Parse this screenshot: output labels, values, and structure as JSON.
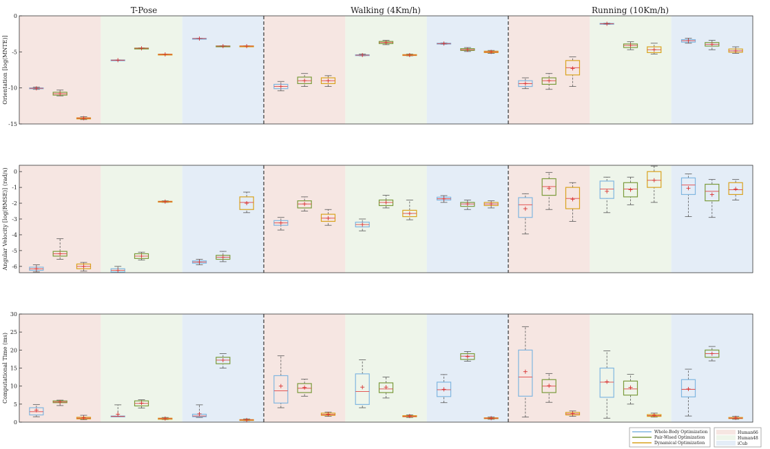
{
  "chart_data": {
    "type": "box",
    "scenarios": [
      "T-Pose",
      "Walking (4Km/h)",
      "Running (10Km/h)"
    ],
    "models": [
      "Human66",
      "Human48",
      "iCub"
    ],
    "methods": [
      "Whole-Body Optimization",
      "Pair-Wised Optimization",
      "Dynamical Optimization"
    ],
    "colors": {
      "methods": [
        "#7fb6e0",
        "#7a9a3a",
        "#d9a21c"
      ],
      "models": [
        "#f6e6e2",
        "#eef5ea",
        "#e4edf7"
      ],
      "median": "#e04040",
      "mean": "#d8302f",
      "whisker": "#555555",
      "divider": "#333333"
    },
    "legend": {
      "methods": [
        "Whole-Body Optimization",
        "Pair-Wised Optimization",
        "Dynamical Optimization"
      ],
      "models": [
        "Human66",
        "Human48",
        "iCub"
      ]
    },
    "panels": [
      {
        "id": "orientation",
        "ylabel": "Orientation [log(MNTE)]",
        "ylim": [
          -15,
          0
        ],
        "yticks": [
          0,
          -5,
          -10,
          -15
        ],
        "yticklabels": [
          "0",
          "-5",
          "-10",
          "-15"
        ],
        "boxes": [
          [
            [
              -10.2,
              -10.1,
              -10.05,
              -10.0,
              -9.9,
              -10.05
            ],
            [
              -11.1,
              -11.0,
              -10.8,
              -10.6,
              -10.3,
              -10.8
            ],
            [
              -14.4,
              -14.3,
              -14.2,
              -14.15,
              -14.0,
              -14.2
            ],
            [
              -6.2,
              -6.18,
              -6.15,
              -6.12,
              -6.1,
              -6.15
            ],
            [
              -4.55,
              -4.52,
              -4.5,
              -4.48,
              -4.45,
              -4.5
            ],
            [
              -5.4,
              -5.38,
              -5.35,
              -5.32,
              -5.3,
              -5.35
            ],
            [
              -3.2,
              -3.17,
              -3.15,
              -3.13,
              -3.1,
              -3.15
            ],
            [
              -4.25,
              -4.22,
              -4.2,
              -4.18,
              -4.15,
              -4.2
            ],
            [
              -4.25,
              -4.22,
              -4.2,
              -4.18,
              -4.15,
              -4.2
            ]
          ],
          [
            [
              -10.4,
              -10.1,
              -9.8,
              -9.5,
              -9.1,
              -9.8
            ],
            [
              -9.8,
              -9.4,
              -9.0,
              -8.5,
              -8.0,
              -9.0
            ],
            [
              -9.8,
              -9.4,
              -9.0,
              -8.6,
              -8.3,
              -9.0
            ],
            [
              -5.55,
              -5.5,
              -5.45,
              -5.4,
              -5.3,
              -5.45
            ],
            [
              -4.0,
              -3.85,
              -3.7,
              -3.55,
              -3.4,
              -3.7
            ],
            [
              -5.55,
              -5.5,
              -5.45,
              -5.38,
              -5.3,
              -5.45
            ],
            [
              -3.95,
              -3.9,
              -3.85,
              -3.8,
              -3.75,
              -3.85
            ],
            [
              -4.95,
              -4.8,
              -4.7,
              -4.55,
              -4.4,
              -4.7
            ],
            [
              -5.2,
              -5.1,
              -5.0,
              -4.9,
              -4.8,
              -5.0
            ]
          ],
          [
            [
              -10.1,
              -9.8,
              -9.4,
              -9.0,
              -8.6,
              -9.4
            ],
            [
              -10.2,
              -9.5,
              -9.0,
              -8.6,
              -8.0,
              -9.0
            ],
            [
              -9.8,
              -8.2,
              -7.2,
              -6.2,
              -5.7,
              -7.3
            ],
            [
              -1.2,
              -1.15,
              -1.1,
              -1.05,
              -1.0,
              -1.1
            ],
            [
              -4.7,
              -4.4,
              -4.1,
              -3.9,
              -3.6,
              -4.1
            ],
            [
              -5.3,
              -5.1,
              -4.7,
              -4.3,
              -3.8,
              -4.7
            ],
            [
              -3.8,
              -3.65,
              -3.45,
              -3.3,
              -3.1,
              -3.45
            ],
            [
              -4.7,
              -4.2,
              -3.95,
              -3.7,
              -3.4,
              -3.95
            ],
            [
              -5.2,
              -5.05,
              -4.85,
              -4.6,
              -4.3,
              -4.85
            ]
          ]
        ]
      },
      {
        "id": "angular-velocity",
        "ylabel": "Angular Velocity [log(RMSE)] (rad/s)",
        "ylim": [
          -6.4,
          0.4
        ],
        "yticks": [
          0,
          -1,
          -2,
          -3,
          -4,
          -5,
          -6
        ],
        "yticklabels": [
          "0",
          "-1",
          "-2",
          "-3",
          "-4",
          "-5",
          "-6"
        ],
        "boxes": [
          [
            [
              -6.35,
              -6.25,
              -6.15,
              -6.05,
              -5.9,
              -6.15
            ],
            [
              -5.55,
              -5.35,
              -5.2,
              -5.05,
              -4.25,
              -5.2
            ],
            [
              -6.3,
              -6.15,
              -6.0,
              -5.85,
              -5.75,
              -6.0
            ],
            [
              -6.4,
              -6.35,
              -6.25,
              -6.15,
              -6.0,
              -6.25
            ],
            [
              -5.6,
              -5.5,
              -5.35,
              -5.2,
              -5.1,
              -5.35
            ],
            [
              -1.95,
              -1.92,
              -1.9,
              -1.88,
              -1.85,
              -1.9
            ],
            [
              -5.9,
              -5.8,
              -5.72,
              -5.65,
              -5.55,
              -5.72
            ],
            [
              -5.7,
              -5.55,
              -5.42,
              -5.3,
              -5.05,
              -5.42
            ],
            [
              -2.6,
              -2.4,
              -1.95,
              -1.6,
              -1.3,
              -2.0
            ]
          ],
          [
            [
              -3.7,
              -3.4,
              -3.25,
              -3.1,
              -2.9,
              -3.25
            ],
            [
              -2.5,
              -2.3,
              -2.05,
              -1.85,
              -1.6,
              -2.05
            ],
            [
              -3.4,
              -3.15,
              -2.95,
              -2.7,
              -2.4,
              -2.95
            ],
            [
              -3.75,
              -3.5,
              -3.35,
              -3.2,
              -3.0,
              -3.35
            ],
            [
              -2.3,
              -2.15,
              -1.95,
              -1.8,
              -1.5,
              -1.95
            ],
            [
              -3.05,
              -2.85,
              -2.65,
              -2.45,
              -1.8,
              -2.65
            ],
            [
              -1.95,
              -1.8,
              -1.72,
              -1.62,
              -1.52,
              -1.72
            ],
            [
              -2.4,
              -2.2,
              -2.05,
              -1.95,
              -1.8,
              -2.05
            ],
            [
              -2.3,
              -2.15,
              -2.05,
              -1.95,
              -1.85,
              -2.05
            ]
          ],
          [
            [
              -3.95,
              -2.9,
              -2.1,
              -1.65,
              -1.4,
              -2.35
            ],
            [
              -2.4,
              -1.5,
              -0.95,
              -0.45,
              -0.05,
              -1.05
            ],
            [
              -3.15,
              -2.35,
              -1.7,
              -1.0,
              -0.7,
              -1.75
            ],
            [
              -2.6,
              -1.7,
              -1.1,
              -0.6,
              -0.35,
              -1.25
            ],
            [
              -2.1,
              -1.6,
              -1.1,
              -0.7,
              -0.35,
              -1.15
            ],
            [
              -1.95,
              -1.0,
              -0.55,
              0.0,
              0.35,
              -0.55
            ],
            [
              -2.85,
              -1.45,
              -0.85,
              -0.4,
              -0.15,
              -1.05
            ],
            [
              -2.9,
              -1.85,
              -1.25,
              -0.8,
              -0.5,
              -1.45
            ],
            [
              -1.8,
              -1.45,
              -1.15,
              -0.7,
              -0.5,
              -1.1
            ]
          ]
        ]
      },
      {
        "id": "computational-time",
        "ylabel": "Computational Time (ms)",
        "ylim": [
          0,
          30
        ],
        "yticks": [
          0,
          5,
          10,
          15,
          20,
          25,
          30
        ],
        "yticklabels": [
          "0",
          "5",
          "10",
          "15",
          "20",
          "25",
          "30"
        ],
        "boxes": [
          [
            [
              1.5,
              2.0,
              2.9,
              4.0,
              4.9,
              3.3
            ],
            [
              4.6,
              5.4,
              5.6,
              5.9,
              6.1,
              5.6
            ],
            [
              0.7,
              0.9,
              1.1,
              1.35,
              1.9,
              1.2
            ],
            [
              1.5,
              1.5,
              1.6,
              1.7,
              4.8,
              2.2
            ],
            [
              3.9,
              4.5,
              5.2,
              5.9,
              6.2,
              5.3
            ],
            [
              0.7,
              0.8,
              1.0,
              1.1,
              1.3,
              1.0
            ],
            [
              1.3,
              1.5,
              1.7,
              2.2,
              4.8,
              2.3
            ],
            [
              15.0,
              16.2,
              17.2,
              18.0,
              19.0,
              17.2
            ],
            [
              0.4,
              0.5,
              0.6,
              0.7,
              0.9,
              0.6
            ]
          ],
          [
            [
              4.0,
              5.3,
              8.7,
              12.9,
              18.4,
              10.0
            ],
            [
              7.2,
              8.2,
              9.4,
              10.7,
              11.9,
              9.6
            ],
            [
              1.6,
              1.9,
              2.1,
              2.5,
              2.8,
              2.2
            ],
            [
              4.0,
              4.9,
              8.5,
              13.4,
              17.3,
              9.7
            ],
            [
              6.7,
              8.2,
              9.2,
              10.9,
              12.5,
              9.7
            ],
            [
              1.3,
              1.5,
              1.6,
              1.8,
              2.0,
              1.7
            ],
            [
              5.4,
              7.1,
              9.0,
              11.1,
              13.2,
              9.1
            ],
            [
              16.9,
              17.4,
              18.3,
              19.0,
              19.6,
              18.2
            ],
            [
              0.8,
              1.0,
              1.1,
              1.2,
              1.4,
              1.1
            ]
          ],
          [
            [
              1.4,
              7.2,
              12.5,
              20.0,
              26.5,
              14.0
            ],
            [
              5.5,
              8.2,
              10.0,
              11.8,
              13.5,
              10.1
            ],
            [
              1.6,
              2.0,
              2.3,
              2.7,
              3.1,
              2.4
            ],
            [
              1.1,
              6.9,
              11.1,
              15.0,
              19.8,
              11.2
            ],
            [
              5.0,
              7.5,
              9.2,
              11.4,
              13.3,
              9.6
            ],
            [
              1.4,
              1.6,
              1.8,
              2.1,
              2.5,
              1.9
            ],
            [
              1.7,
              7.0,
              9.1,
              11.8,
              14.7,
              9.2
            ],
            [
              17.0,
              18.0,
              19.0,
              20.0,
              21.0,
              19.0
            ],
            [
              0.8,
              1.0,
              1.1,
              1.3,
              1.6,
              1.2
            ]
          ]
        ]
      }
    ]
  }
}
